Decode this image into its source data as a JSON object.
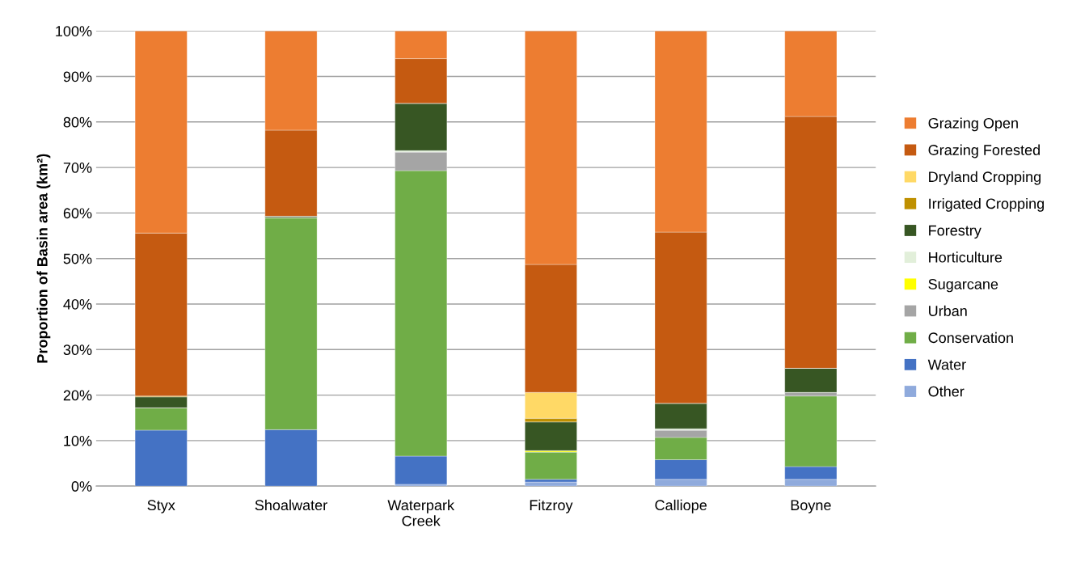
{
  "chart_data": {
    "type": "bar",
    "stacked": true,
    "ylabel": "Proportion of Basin area (km²)",
    "categories": [
      "Styx",
      "Shoalwater",
      "Waterpark\nCreek",
      "Fitzroy",
      "Calliope",
      "Boyne"
    ],
    "ylim": [
      0,
      100
    ],
    "yticks": [
      {
        "value": 0,
        "label": "0%"
      },
      {
        "value": 10,
        "label": "10%"
      },
      {
        "value": 20,
        "label": "20%"
      },
      {
        "value": 30,
        "label": "30%"
      },
      {
        "value": 40,
        "label": "40%"
      },
      {
        "value": 50,
        "label": "50%"
      },
      {
        "value": 60,
        "label": "60%"
      },
      {
        "value": 70,
        "label": "70%"
      },
      {
        "value": 80,
        "label": "80%"
      },
      {
        "value": 90,
        "label": "90%"
      },
      {
        "value": 100,
        "label": "100%"
      }
    ],
    "grid": "y",
    "legend": "right",
    "series": [
      {
        "name": "Other",
        "color": "#8faadc",
        "values": [
          0,
          0,
          0.4,
          0.9,
          1.5,
          1.5
        ]
      },
      {
        "name": "Water",
        "color": "#4472c4",
        "values": [
          12.3,
          12.4,
          6.2,
          0.6,
          4.3,
          2.8
        ]
      },
      {
        "name": "Conservation",
        "color": "#70ad47",
        "values": [
          4.9,
          46.6,
          62.7,
          6.0,
          4.9,
          15.5
        ]
      },
      {
        "name": "Urban",
        "color": "#a5a5a5",
        "values": [
          0,
          0,
          4.1,
          0,
          1.6,
          0.8
        ]
      },
      {
        "name": "Sugarcane",
        "color": "#ffff00",
        "values": [
          0,
          0,
          0,
          0.3,
          0,
          0
        ]
      },
      {
        "name": "Horticulture",
        "color": "#e2efda",
        "values": [
          0,
          0,
          0.3,
          0,
          0.3,
          0
        ]
      },
      {
        "name": "Forestry",
        "color": "#375623",
        "values": [
          2.4,
          0.3,
          10.4,
          6.3,
          5.6,
          5.3
        ]
      },
      {
        "name": "Irrigated Cropping",
        "color": "#bf9000",
        "values": [
          0.2,
          0,
          0,
          0.8,
          0,
          0
        ]
      },
      {
        "name": "Dryland Cropping",
        "color": "#ffd966",
        "values": [
          0,
          0,
          0,
          5.7,
          0,
          0
        ]
      },
      {
        "name": "Grazing Forested",
        "color": "#c55a11",
        "values": [
          35.8,
          18.9,
          9.8,
          28.1,
          37.6,
          55.3
        ]
      },
      {
        "name": "Grazing Open",
        "color": "#ed7d31",
        "values": [
          44.4,
          21.8,
          6.1,
          51.3,
          44.2,
          18.8
        ]
      }
    ]
  }
}
